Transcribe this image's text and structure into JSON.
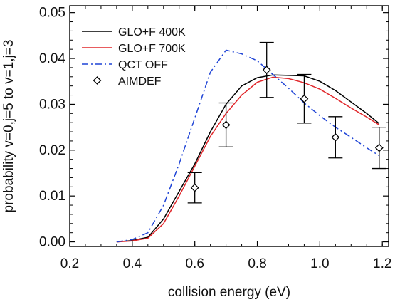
{
  "chart_data": {
    "type": "line",
    "xlabel": "collision energy (eV)",
    "ylabel": "probability v=0,j=5 to v=1,j=3",
    "xlim": [
      0.2,
      1.22
    ],
    "ylim": [
      -0.001,
      0.0515
    ],
    "xticks": [
      0.2,
      0.4,
      0.6,
      0.8,
      1.0,
      1.2
    ],
    "xtick_labels": [
      "0.2",
      "0.4",
      "0.6",
      "0.8",
      "1.0",
      "1.2"
    ],
    "yticks": [
      0.0,
      0.01,
      0.02,
      0.03,
      0.04,
      0.05
    ],
    "ytick_labels": [
      "0.00",
      "0.01",
      "0.02",
      "0.03",
      "0.04",
      "0.05"
    ],
    "legend_position": "top-left",
    "series": [
      {
        "name": "GLO+F 400K",
        "color": "#000000",
        "style": "solid",
        "x": [
          0.35,
          0.4,
          0.45,
          0.5,
          0.55,
          0.6,
          0.65,
          0.7,
          0.75,
          0.8,
          0.85,
          0.9,
          0.95,
          1.0,
          1.05,
          1.1,
          1.15,
          1.19
        ],
        "y": [
          0.0,
          0.0003,
          0.001,
          0.005,
          0.011,
          0.017,
          0.024,
          0.03,
          0.034,
          0.0358,
          0.0364,
          0.0363,
          0.0362,
          0.035,
          0.033,
          0.0305,
          0.028,
          0.0258
        ]
      },
      {
        "name": "GLO+F 700K",
        "color": "#e0262a",
        "style": "solid",
        "x": [
          0.35,
          0.4,
          0.45,
          0.5,
          0.55,
          0.6,
          0.65,
          0.7,
          0.75,
          0.8,
          0.85,
          0.9,
          0.95,
          1.0,
          1.05,
          1.1,
          1.15,
          1.19
        ],
        "y": [
          0.0,
          0.0002,
          0.0008,
          0.004,
          0.01,
          0.0165,
          0.023,
          0.028,
          0.032,
          0.0348,
          0.0359,
          0.0356,
          0.0347,
          0.0333,
          0.0313,
          0.0292,
          0.0272,
          0.0255
        ]
      },
      {
        "name": "QCT OFF",
        "color": "#1f44d6",
        "style": "dashdot",
        "x": [
          0.35,
          0.4,
          0.45,
          0.5,
          0.55,
          0.6,
          0.65,
          0.7,
          0.75,
          0.8,
          0.85,
          0.9,
          0.95,
          1.0,
          1.05,
          1.1,
          1.15,
          1.19
        ],
        "y": [
          0.0,
          0.0005,
          0.002,
          0.008,
          0.017,
          0.027,
          0.037,
          0.0418,
          0.041,
          0.0395,
          0.0365,
          0.0335,
          0.0303,
          0.0275,
          0.025,
          0.0228,
          0.0205,
          0.0188
        ]
      },
      {
        "name": "AIMDEF",
        "color": "#000000",
        "style": "marker-diamond",
        "x": [
          0.6,
          0.7,
          0.83,
          0.95,
          1.05,
          1.19
        ],
        "y": [
          0.0118,
          0.0255,
          0.0375,
          0.0312,
          0.0228,
          0.0205
        ],
        "err": [
          0.0033,
          0.0048,
          0.006,
          0.0053,
          0.0045,
          0.0045
        ]
      }
    ]
  }
}
